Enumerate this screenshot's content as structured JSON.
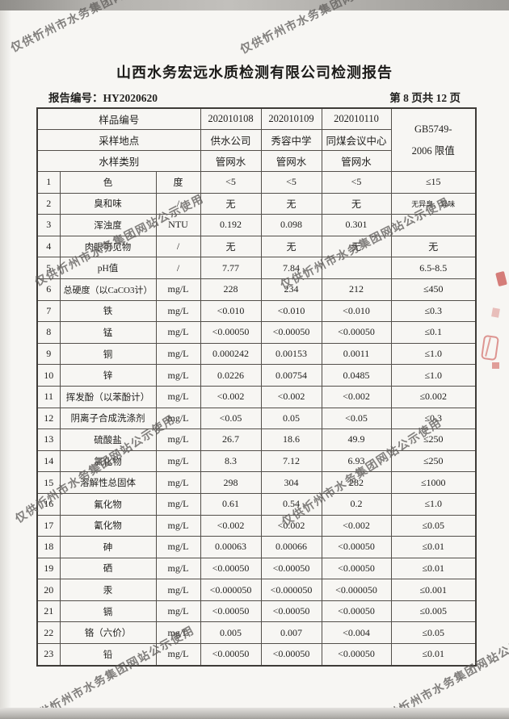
{
  "page": {
    "title": "山西水务宏远水质检测有限公司检测报告",
    "report_no_label": "报告编号：",
    "report_no": "HY2020620",
    "page_info": "第 8 页共 12 页"
  },
  "watermark": {
    "text": "仅供忻州市水务集团网站公示使用"
  },
  "table": {
    "header": {
      "rows": [
        {
          "label": "样品编号",
          "values": [
            "202010108",
            "202010109",
            "202010110"
          ]
        },
        {
          "label": "采样地点",
          "values": [
            "供水公司",
            "秀容中学",
            "同煤会议中心"
          ]
        },
        {
          "label": "水样类别",
          "values": [
            "管网水",
            "管网水",
            "管网水"
          ]
        }
      ],
      "limit_line1": "GB5749-",
      "limit_line2": "2006 限值"
    },
    "rows": [
      {
        "no": "1",
        "name": "色",
        "unit": "度",
        "v1": "<5",
        "v2": "<5",
        "v3": "<5",
        "limit": "≤15"
      },
      {
        "no": "2",
        "name": "臭和味",
        "unit": "/",
        "v1": "无",
        "v2": "无",
        "v3": "无",
        "limit": "无异臭、异味"
      },
      {
        "no": "3",
        "name": "浑浊度",
        "unit": "NTU",
        "v1": "0.192",
        "v2": "0.098",
        "v3": "0.301",
        "limit": ""
      },
      {
        "no": "4",
        "name": "肉眼可见物",
        "unit": "/",
        "v1": "无",
        "v2": "无",
        "v3": "无",
        "limit": "无"
      },
      {
        "no": "5",
        "name": "pH值",
        "unit": "/",
        "v1": "7.77",
        "v2": "7.84",
        "v3": "",
        "limit": "6.5-8.5"
      },
      {
        "no": "6",
        "name": "总硬度（以CaCO3计）",
        "unit": "mg/L",
        "v1": "228",
        "v2": "234",
        "v3": "212",
        "limit": "≤450"
      },
      {
        "no": "7",
        "name": "铁",
        "unit": "mg/L",
        "v1": "<0.010",
        "v2": "<0.010",
        "v3": "<0.010",
        "limit": "≤0.3"
      },
      {
        "no": "8",
        "name": "锰",
        "unit": "mg/L",
        "v1": "<0.00050",
        "v2": "<0.00050",
        "v3": "<0.00050",
        "limit": "≤0.1"
      },
      {
        "no": "9",
        "name": "铜",
        "unit": "mg/L",
        "v1": "0.000242",
        "v2": "0.00153",
        "v3": "0.0011",
        "limit": "≤1.0"
      },
      {
        "no": "10",
        "name": "锌",
        "unit": "mg/L",
        "v1": "0.0226",
        "v2": "0.00754",
        "v3": "0.0485",
        "limit": "≤1.0"
      },
      {
        "no": "11",
        "name": "挥发酚（以苯酚计）",
        "unit": "mg/L",
        "v1": "<0.002",
        "v2": "<0.002",
        "v3": "<0.002",
        "limit": "≤0.002"
      },
      {
        "no": "12",
        "name": "阴离子合成洗涤剂",
        "unit": "mg/L",
        "v1": "<0.05",
        "v2": "0.05",
        "v3": "<0.05",
        "limit": "≤0.3"
      },
      {
        "no": "13",
        "name": "硫酸盐",
        "unit": "mg/L",
        "v1": "26.7",
        "v2": "18.6",
        "v3": "49.9",
        "limit": "≤250"
      },
      {
        "no": "14",
        "name": "氯化物",
        "unit": "mg/L",
        "v1": "8.3",
        "v2": "7.12",
        "v3": "6.93",
        "limit": "≤250"
      },
      {
        "no": "15",
        "name": "溶解性总固体",
        "unit": "mg/L",
        "v1": "298",
        "v2": "304",
        "v3": "282",
        "limit": "≤1000"
      },
      {
        "no": "16",
        "name": "氟化物",
        "unit": "mg/L",
        "v1": "0.61",
        "v2": "0.54",
        "v3": "0.2",
        "limit": "≤1.0"
      },
      {
        "no": "17",
        "name": "氰化物",
        "unit": "mg/L",
        "v1": "<0.002",
        "v2": "<0.002",
        "v3": "<0.002",
        "limit": "≤0.05"
      },
      {
        "no": "18",
        "name": "砷",
        "unit": "mg/L",
        "v1": "0.00063",
        "v2": "0.00066",
        "v3": "<0.00050",
        "limit": "≤0.01"
      },
      {
        "no": "19",
        "name": "硒",
        "unit": "mg/L",
        "v1": "<0.00050",
        "v2": "<0.00050",
        "v3": "<0.00050",
        "limit": "≤0.01"
      },
      {
        "no": "20",
        "name": "汞",
        "unit": "mg/L",
        "v1": "<0.000050",
        "v2": "<0.000050",
        "v3": "<0.000050",
        "limit": "≤0.001"
      },
      {
        "no": "21",
        "name": "镉",
        "unit": "mg/L",
        "v1": "<0.00050",
        "v2": "<0.00050",
        "v3": "<0.00050",
        "limit": "≤0.005"
      },
      {
        "no": "22",
        "name": "铬（六价）",
        "unit": "mg/L",
        "v1": "0.005",
        "v2": "0.007",
        "v3": "<0.004",
        "limit": "≤0.05"
      },
      {
        "no": "23",
        "name": "铅",
        "unit": "mg/L",
        "v1": "<0.00050",
        "v2": "<0.00050",
        "v3": "<0.00050",
        "limit": "≤0.01"
      }
    ]
  }
}
